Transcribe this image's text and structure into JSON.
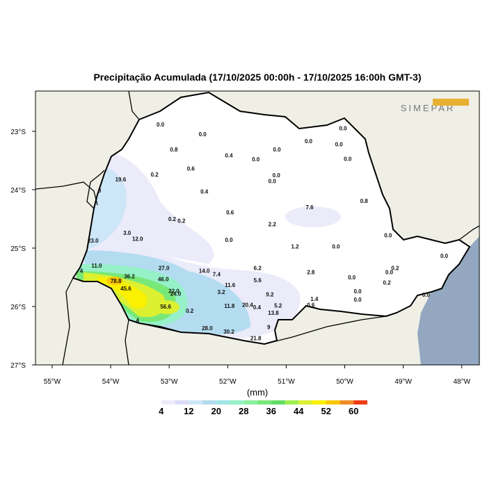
{
  "title": "Precipitação Acumulada (17/10/2025 00:00h - 17/10/2025 16:00h GMT-3)",
  "logo": "SIMEPAR",
  "map": {
    "lonlim": [
      -55.285,
      -47.7
    ],
    "latlim": [
      -27,
      -22.31
    ],
    "lonticks": [
      {
        "value": -55,
        "label": "55°W"
      },
      {
        "value": -54,
        "label": "54°W"
      },
      {
        "value": -53,
        "label": "53°W"
      },
      {
        "value": -52,
        "label": "52°W"
      },
      {
        "value": -51,
        "label": "51°W"
      },
      {
        "value": -50,
        "label": "50°W"
      },
      {
        "value": -49,
        "label": "49°W"
      },
      {
        "value": -48,
        "label": "48°W"
      }
    ],
    "latticks": [
      {
        "value": -23,
        "label": "23°S"
      },
      {
        "value": -24,
        "label": "24°S"
      },
      {
        "value": -25,
        "label": "25°S"
      },
      {
        "value": -26,
        "label": "26°S"
      },
      {
        "value": -27,
        "label": "27°S"
      }
    ],
    "stations": [
      {
        "lon": -53.15,
        "lat": -22.89,
        "label": "0.0"
      },
      {
        "lon": -52.43,
        "lat": -23.06,
        "label": "0.0"
      },
      {
        "lon": -52.92,
        "lat": -23.32,
        "label": "0.8"
      },
      {
        "lon": -51.98,
        "lat": -23.42,
        "label": "0.4"
      },
      {
        "lon": -51.52,
        "lat": -23.49,
        "label": "0.0"
      },
      {
        "lon": -51.16,
        "lat": -23.32,
        "label": "0.0"
      },
      {
        "lon": -50.62,
        "lat": -23.18,
        "label": "0.0"
      },
      {
        "lon": -50.1,
        "lat": -23.23,
        "label": "0.0"
      },
      {
        "lon": -50.03,
        "lat": -22.96,
        "label": "0.0"
      },
      {
        "lon": -49.95,
        "lat": -23.48,
        "label": "0.0"
      },
      {
        "lon": -52.63,
        "lat": -23.65,
        "label": "0.6"
      },
      {
        "lon": -53.25,
        "lat": -23.75,
        "label": "0.2"
      },
      {
        "lon": -53.83,
        "lat": -23.83,
        "label": "19.6"
      },
      {
        "lon": -51.17,
        "lat": -23.76,
        "label": "0.0"
      },
      {
        "lon": -51.24,
        "lat": -23.86,
        "label": "0.0"
      },
      {
        "lon": -52.4,
        "lat": -24.04,
        "label": "0.4"
      },
      {
        "lon": -49.67,
        "lat": -24.2,
        "label": "0.8"
      },
      {
        "lon": -50.6,
        "lat": -24.31,
        "label": "7.6"
      },
      {
        "lon": -51.96,
        "lat": -24.4,
        "label": "0.6"
      },
      {
        "lon": -52.95,
        "lat": -24.51,
        "label": "0.2"
      },
      {
        "lon": -52.79,
        "lat": -24.54,
        "label": "0.2"
      },
      {
        "lon": -51.24,
        "lat": -24.6,
        "label": "2.2"
      },
      {
        "lon": -53.72,
        "lat": -24.75,
        "label": "3.0"
      },
      {
        "lon": -53.54,
        "lat": -24.85,
        "label": "12.0"
      },
      {
        "lon": -54.3,
        "lat": -24.88,
        "label": "23.0"
      },
      {
        "lon": -51.98,
        "lat": -24.87,
        "label": "0.0"
      },
      {
        "lon": -50.85,
        "lat": -24.98,
        "label": "1.2"
      },
      {
        "lon": -50.15,
        "lat": -24.98,
        "label": "0.0"
      },
      {
        "lon": -49.26,
        "lat": -24.79,
        "label": "0.0"
      },
      {
        "lon": -54.24,
        "lat": -25.31,
        "label": "11.0"
      },
      {
        "lon": -53.09,
        "lat": -25.35,
        "label": "27.0"
      },
      {
        "lon": -51.49,
        "lat": -25.35,
        "label": "6.2"
      },
      {
        "lon": -52.4,
        "lat": -25.4,
        "label": "14.0"
      },
      {
        "lon": -52.19,
        "lat": -25.46,
        "label": "7.4"
      },
      {
        "lon": -50.58,
        "lat": -25.42,
        "label": "2.8"
      },
      {
        "lon": -51.49,
        "lat": -25.56,
        "label": "5.6"
      },
      {
        "lon": -49.88,
        "lat": -25.51,
        "label": "0.0"
      },
      {
        "lon": -53.68,
        "lat": -25.49,
        "label": "36.2"
      },
      {
        "lon": -53.91,
        "lat": -25.57,
        "label": "78.8"
      },
      {
        "lon": -53.74,
        "lat": -25.7,
        "label": "45.6"
      },
      {
        "lon": -53.1,
        "lat": -25.54,
        "label": "46.0"
      },
      {
        "lon": -51.96,
        "lat": -25.64,
        "label": "11.6"
      },
      {
        "lon": -52.11,
        "lat": -25.76,
        "label": "3.2"
      },
      {
        "lon": -52.92,
        "lat": -25.74,
        "label": "22.0"
      },
      {
        "lon": -52.89,
        "lat": -25.79,
        "label": "24.0"
      },
      {
        "lon": -51.28,
        "lat": -25.8,
        "label": "9.2"
      },
      {
        "lon": -49.28,
        "lat": -25.6,
        "label": "0.2"
      },
      {
        "lon": -49.78,
        "lat": -25.89,
        "label": "0.0"
      },
      {
        "lon": -49.78,
        "lat": -25.75,
        "label": "0.0"
      },
      {
        "lon": -50.52,
        "lat": -25.88,
        "label": "1.4"
      },
      {
        "lon": -53.06,
        "lat": -26.01,
        "label": "56.6"
      },
      {
        "lon": -51.97,
        "lat": -26.0,
        "label": "11.8"
      },
      {
        "lon": -51.66,
        "lat": -25.98,
        "label": "20.4"
      },
      {
        "lon": -51.5,
        "lat": -26.02,
        "label": "0.4"
      },
      {
        "lon": -51.14,
        "lat": -25.99,
        "label": "5.2"
      },
      {
        "lon": -50.58,
        "lat": -25.98,
        "label": "0.6"
      },
      {
        "lon": -52.65,
        "lat": -26.08,
        "label": "0.2"
      },
      {
        "lon": -51.22,
        "lat": -26.12,
        "label": "13.8"
      },
      {
        "lon": -51.3,
        "lat": -26.36,
        "label": "9"
      },
      {
        "lon": -52.35,
        "lat": -26.38,
        "label": "28.0"
      },
      {
        "lon": -51.98,
        "lat": -26.44,
        "label": "30.2"
      },
      {
        "lon": -51.52,
        "lat": -26.55,
        "label": "21.8"
      },
      {
        "lon": -48.61,
        "lat": -25.81,
        "label": "0.0"
      },
      {
        "lon": -48.3,
        "lat": -25.14,
        "label": "0.0"
      },
      {
        "lon": -49.24,
        "lat": -25.42,
        "label": "0.0"
      },
      {
        "lon": -49.14,
        "lat": -25.35,
        "label": "0.2"
      },
      {
        "lon": -54.5,
        "lat": -25.4,
        "label": "4"
      },
      {
        "lon": -54.19,
        "lat": -24.02,
        "label": "8"
      },
      {
        "lon": -53.54,
        "lat": -26.24,
        "label": "4"
      }
    ]
  },
  "colorbar": {
    "unit": "(mm)",
    "lim": [
      0,
      64
    ],
    "ticks": [
      4,
      12,
      20,
      28,
      36,
      44,
      52,
      60
    ],
    "colors": [
      "#ffffff",
      "#ebebfa",
      "#dcdcf8",
      "#cde6f8",
      "#b4dcf0",
      "#a0e6e6",
      "#96f0c8",
      "#8cf0a0",
      "#78e878",
      "#64dc64",
      "#a0f050",
      "#dcf032",
      "#faf000",
      "#fac800",
      "#f08c28",
      "#f03c14"
    ]
  }
}
